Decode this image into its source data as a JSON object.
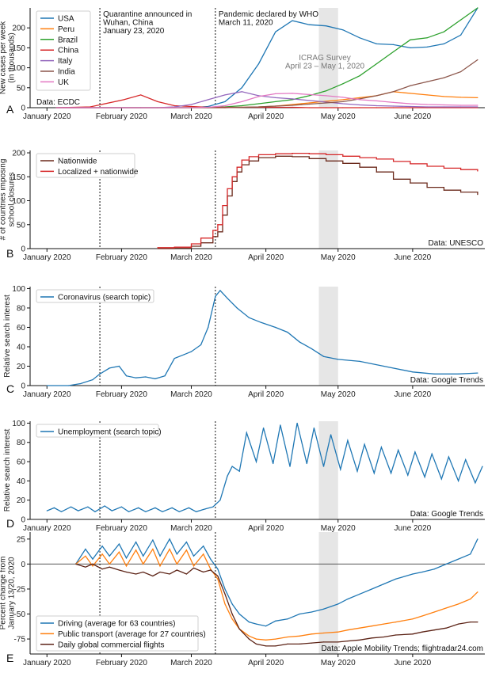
{
  "colors": {
    "USA": "#1f77b4",
    "Peru": "#ff7f0e",
    "Brazil": "#2ca02c",
    "China": "#d62728",
    "Italy": "#9467bd",
    "India": "#8c564b",
    "UK": "#e377c2",
    "survey_band": "#e6e6e6"
  },
  "annotations": {
    "quarantine": [
      "Quarantine announced in",
      "Wuhan, China",
      "January 23, 2020"
    ],
    "pandemic": [
      "Pandemic declared by WHO",
      "March 11, 2020"
    ],
    "survey": [
      "ICRAG Survey",
      "April 23 – May 1, 2020"
    ]
  },
  "month_labels": [
    "January 2020",
    "February 2020",
    "March 2020",
    "April 2020",
    "May 2020",
    "June 2020"
  ],
  "chart_data": [
    {
      "panel": "A",
      "type": "line",
      "ylabel": [
        "New cases per week",
        "(in thousands)"
      ],
      "ylim": [
        0,
        250
      ],
      "yticks": [
        0,
        50,
        100,
        150,
        200
      ],
      "source": "Data: ECDC",
      "legend": "top-left",
      "x": [
        "2020-01-05",
        "2020-01-19",
        "2020-02-02",
        "2020-02-09",
        "2020-02-16",
        "2020-02-23",
        "2020-03-01",
        "2020-03-08",
        "2020-03-15",
        "2020-03-22",
        "2020-03-29",
        "2020-04-05",
        "2020-04-12",
        "2020-04-19",
        "2020-04-26",
        "2020-05-03",
        "2020-05-10",
        "2020-05-17",
        "2020-05-24",
        "2020-05-31",
        "2020-06-07",
        "2020-06-14",
        "2020-06-21",
        "2020-06-28"
      ],
      "series": [
        {
          "name": "USA",
          "values": [
            0,
            0,
            0,
            0,
            0,
            0,
            0,
            3,
            15,
            50,
            110,
            190,
            218,
            208,
            205,
            195,
            175,
            160,
            158,
            150,
            152,
            160,
            182,
            250
          ]
        },
        {
          "name": "Peru",
          "values": [
            0,
            0,
            0,
            0,
            0,
            0,
            0,
            0,
            0,
            1,
            2,
            4,
            8,
            12,
            16,
            20,
            25,
            30,
            40,
            36,
            32,
            28,
            26,
            25
          ]
        },
        {
          "name": "Brazil",
          "values": [
            0,
            0,
            0,
            0,
            0,
            0,
            0,
            0,
            2,
            5,
            10,
            15,
            20,
            30,
            42,
            60,
            80,
            110,
            140,
            170,
            175,
            190,
            220,
            250
          ]
        },
        {
          "name": "China",
          "values": [
            0,
            2,
            20,
            32,
            15,
            5,
            3,
            1,
            1,
            1,
            1,
            1,
            1,
            0,
            0,
            0,
            0,
            0,
            0,
            0,
            0,
            0,
            0,
            0
          ]
        },
        {
          "name": "Italy",
          "values": [
            0,
            0,
            0,
            0,
            0,
            2,
            8,
            20,
            32,
            40,
            30,
            25,
            22,
            18,
            14,
            10,
            7,
            5,
            4,
            3,
            2,
            2,
            2,
            2
          ]
        },
        {
          "name": "India",
          "values": [
            0,
            0,
            0,
            0,
            0,
            0,
            0,
            0,
            0,
            1,
            2,
            4,
            6,
            9,
            12,
            15,
            22,
            30,
            40,
            55,
            65,
            75,
            90,
            120
          ]
        },
        {
          "name": "UK",
          "values": [
            0,
            0,
            0,
            0,
            0,
            0,
            0,
            1,
            5,
            15,
            28,
            35,
            36,
            33,
            30,
            26,
            20,
            17,
            13,
            10,
            8,
            7,
            6,
            6
          ]
        }
      ]
    },
    {
      "panel": "B",
      "type": "line",
      "ylabel": [
        "# of countries imposing",
        "school closures"
      ],
      "ylim": [
        0,
        205
      ],
      "yticks": [
        0,
        50,
        100,
        150,
        200
      ],
      "source": "Data: UNESCO",
      "legend": "top-left",
      "x": [
        "2020-02-16",
        "2020-02-23",
        "2020-03-01",
        "2020-03-05",
        "2020-03-10",
        "2020-03-12",
        "2020-03-14",
        "2020-03-16",
        "2020-03-18",
        "2020-03-20",
        "2020-03-22",
        "2020-03-25",
        "2020-03-29",
        "2020-04-05",
        "2020-04-12",
        "2020-04-19",
        "2020-04-26",
        "2020-05-03",
        "2020-05-10",
        "2020-05-17",
        "2020-05-24",
        "2020-05-31",
        "2020-06-07",
        "2020-06-14",
        "2020-06-21",
        "2020-06-28"
      ],
      "series": [
        {
          "name": "Nationwide",
          "values": [
            0,
            1,
            5,
            12,
            25,
            35,
            70,
            110,
            140,
            160,
            175,
            183,
            190,
            193,
            192,
            188,
            183,
            178,
            170,
            160,
            145,
            137,
            128,
            122,
            118,
            113
          ]
        },
        {
          "name": "Localized + nationwide",
          "values": [
            2,
            3,
            10,
            22,
            38,
            50,
            90,
            125,
            150,
            170,
            185,
            192,
            196,
            198,
            199,
            198,
            196,
            193,
            190,
            187,
            182,
            177,
            172,
            168,
            165,
            162
          ]
        }
      ]
    },
    {
      "panel": "C",
      "type": "line",
      "ylabel": [
        "Relative search interest"
      ],
      "ylim": [
        0,
        102
      ],
      "yticks": [
        0,
        20,
        40,
        60,
        80,
        100
      ],
      "source": "Data: Google Trends",
      "legend": "top-left",
      "x": [
        "2020-01-01",
        "2020-01-10",
        "2020-01-15",
        "2020-01-20",
        "2020-01-23",
        "2020-01-27",
        "2020-01-31",
        "2020-02-03",
        "2020-02-07",
        "2020-02-11",
        "2020-02-15",
        "2020-02-19",
        "2020-02-23",
        "2020-02-27",
        "2020-03-01",
        "2020-03-05",
        "2020-03-08",
        "2020-03-11",
        "2020-03-13",
        "2020-03-16",
        "2020-03-20",
        "2020-03-25",
        "2020-03-30",
        "2020-04-05",
        "2020-04-10",
        "2020-04-15",
        "2020-04-20",
        "2020-04-25",
        "2020-05-01",
        "2020-05-10",
        "2020-05-20",
        "2020-06-01",
        "2020-06-10",
        "2020-06-20",
        "2020-06-28"
      ],
      "series": [
        {
          "name": "Coronavirus (search topic)",
          "values": [
            0,
            0,
            2,
            6,
            12,
            18,
            20,
            10,
            8,
            9,
            7,
            10,
            28,
            32,
            35,
            42,
            60,
            92,
            98,
            90,
            80,
            70,
            65,
            60,
            55,
            45,
            38,
            30,
            27,
            25,
            20,
            14,
            12,
            12,
            13
          ]
        }
      ]
    },
    {
      "panel": "D",
      "type": "line",
      "ylabel": [
        "Relative search interest"
      ],
      "ylim": [
        0,
        102
      ],
      "yticks": [
        0,
        20,
        40,
        60,
        80,
        100
      ],
      "source": "Data: Google Trends",
      "legend": "top-left",
      "x": [
        "2020-01-01",
        "2020-01-04",
        "2020-01-07",
        "2020-01-11",
        "2020-01-14",
        "2020-01-18",
        "2020-01-21",
        "2020-01-25",
        "2020-01-28",
        "2020-02-01",
        "2020-02-04",
        "2020-02-08",
        "2020-02-11",
        "2020-02-15",
        "2020-02-18",
        "2020-02-22",
        "2020-02-25",
        "2020-02-29",
        "2020-03-03",
        "2020-03-07",
        "2020-03-10",
        "2020-03-13",
        "2020-03-16",
        "2020-03-18",
        "2020-03-21",
        "2020-03-24",
        "2020-03-28",
        "2020-03-31",
        "2020-04-04",
        "2020-04-07",
        "2020-04-11",
        "2020-04-14",
        "2020-04-18",
        "2020-04-21",
        "2020-04-25",
        "2020-04-28",
        "2020-05-02",
        "2020-05-05",
        "2020-05-09",
        "2020-05-12",
        "2020-05-16",
        "2020-05-19",
        "2020-05-23",
        "2020-05-26",
        "2020-05-30",
        "2020-06-02",
        "2020-06-06",
        "2020-06-09",
        "2020-06-13",
        "2020-06-16",
        "2020-06-20",
        "2020-06-23",
        "2020-06-27",
        "2020-06-30"
      ],
      "series": [
        {
          "name": "Unemployment (search topic)",
          "values": [
            9,
            12,
            8,
            13,
            9,
            13,
            8,
            14,
            9,
            13,
            8,
            12,
            8,
            12,
            8,
            12,
            8,
            12,
            8,
            11,
            13,
            20,
            45,
            55,
            50,
            90,
            60,
            95,
            58,
            98,
            55,
            100,
            58,
            95,
            55,
            88,
            52,
            82,
            50,
            78,
            48,
            75,
            48,
            72,
            46,
            70,
            44,
            68,
            42,
            65,
            40,
            62,
            38,
            55
          ]
        }
      ]
    },
    {
      "panel": "E",
      "type": "line",
      "ylabel": [
        "Percent change from",
        "January 13/20, 2020"
      ],
      "ylim": [
        -90,
        32
      ],
      "yticks": [
        25,
        0,
        -25,
        -50,
        -75
      ],
      "source": "Data: Apple Mobility Trends; flightradar24.com",
      "legend": "bottom-left",
      "x": [
        "2020-01-13",
        "2020-01-17",
        "2020-01-20",
        "2020-01-24",
        "2020-01-27",
        "2020-01-31",
        "2020-02-03",
        "2020-02-07",
        "2020-02-10",
        "2020-02-14",
        "2020-02-17",
        "2020-02-21",
        "2020-02-24",
        "2020-02-28",
        "2020-03-02",
        "2020-03-06",
        "2020-03-09",
        "2020-03-12",
        "2020-03-15",
        "2020-03-18",
        "2020-03-21",
        "2020-03-25",
        "2020-03-28",
        "2020-04-01",
        "2020-04-05",
        "2020-04-10",
        "2020-04-15",
        "2020-04-20",
        "2020-04-25",
        "2020-05-01",
        "2020-05-05",
        "2020-05-10",
        "2020-05-15",
        "2020-05-20",
        "2020-05-25",
        "2020-06-01",
        "2020-06-05",
        "2020-06-10",
        "2020-06-15",
        "2020-06-20",
        "2020-06-25",
        "2020-06-28"
      ],
      "series": [
        {
          "name": "Driving (average for 63 countries)",
          "values": [
            0,
            15,
            5,
            18,
            8,
            20,
            6,
            22,
            8,
            24,
            8,
            25,
            10,
            22,
            8,
            18,
            5,
            -5,
            -25,
            -40,
            -50,
            -58,
            -60,
            -62,
            -57,
            -55,
            -50,
            -48,
            -45,
            -40,
            -35,
            -30,
            -25,
            -20,
            -15,
            -10,
            -8,
            -5,
            0,
            5,
            10,
            25
          ]
        },
        {
          "name": "Public transport (average for 27 countries)",
          "values": [
            0,
            8,
            -2,
            10,
            0,
            12,
            -2,
            14,
            0,
            15,
            -2,
            15,
            0,
            14,
            -2,
            10,
            -5,
            -15,
            -40,
            -55,
            -65,
            -72,
            -75,
            -76,
            -75,
            -73,
            -72,
            -70,
            -69,
            -68,
            -66,
            -64,
            -62,
            -60,
            -58,
            -55,
            -52,
            -48,
            -44,
            -40,
            -35,
            -28
          ]
        },
        {
          "name": "Daily global commercial flights",
          "values": [
            0,
            -3,
            0,
            -5,
            -3,
            -6,
            -8,
            -10,
            -8,
            -12,
            -8,
            -10,
            -6,
            -10,
            -4,
            -8,
            -6,
            -12,
            -30,
            -50,
            -65,
            -75,
            -80,
            -82,
            -82,
            -80,
            -80,
            -79,
            -78,
            -78,
            -77,
            -76,
            -74,
            -73,
            -71,
            -70,
            -68,
            -66,
            -64,
            -60,
            -58,
            -58
          ]
        }
      ]
    }
  ]
}
